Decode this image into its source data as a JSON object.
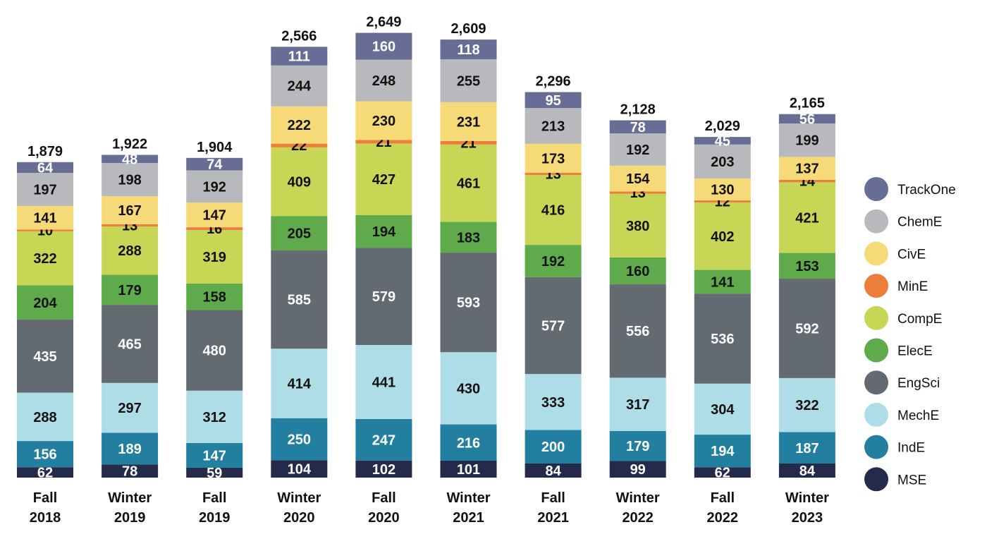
{
  "chart_data": {
    "type": "bar",
    "stacked": true,
    "title": "",
    "xlabel": "",
    "ylabel": "",
    "categories": [
      [
        "Fall",
        "2018"
      ],
      [
        "Winter",
        "2019"
      ],
      [
        "Fall",
        "2019"
      ],
      [
        "Winter",
        "2020"
      ],
      [
        "Fall",
        "2020"
      ],
      [
        "Winter",
        "2021"
      ],
      [
        "Fall",
        "2021"
      ],
      [
        "Winter",
        "2022"
      ],
      [
        "Fall",
        "2022"
      ],
      [
        "Winter",
        "2023"
      ]
    ],
    "totals": [
      "1,879",
      "1,922",
      "1,904",
      "2,566",
      "2,649",
      "2,609",
      "2,296",
      "2,128",
      "2,029",
      "2,165"
    ],
    "series": [
      {
        "name": "MSE",
        "color": "#232a4a",
        "text_color": "#ffffff",
        "values": [
          62,
          78,
          59,
          104,
          102,
          101,
          84,
          99,
          62,
          84
        ]
      },
      {
        "name": "IndE",
        "color": "#227f9f",
        "text_color": "#ffffff",
        "values": [
          156,
          189,
          147,
          250,
          247,
          216,
          200,
          179,
          194,
          187
        ]
      },
      {
        "name": "MechE",
        "color": "#aedde8",
        "text_color": "#111111",
        "values": [
          288,
          297,
          312,
          414,
          441,
          430,
          333,
          317,
          304,
          322
        ]
      },
      {
        "name": "EngSci",
        "color": "#636a72",
        "text_color": "#ffffff",
        "values": [
          435,
          465,
          480,
          585,
          579,
          593,
          577,
          556,
          536,
          592
        ]
      },
      {
        "name": "ElecE",
        "color": "#5fab4c",
        "text_color": "#111111",
        "values": [
          204,
          179,
          158,
          205,
          194,
          183,
          192,
          160,
          141,
          153
        ]
      },
      {
        "name": "CompE",
        "color": "#c8d656",
        "text_color": "#111111",
        "values": [
          322,
          288,
          319,
          409,
          427,
          461,
          416,
          380,
          402,
          421
        ]
      },
      {
        "name": "MinE",
        "color": "#ec7d3a",
        "text_color": "#111111",
        "values": [
          10,
          13,
          16,
          22,
          21,
          21,
          13,
          13,
          12,
          14
        ]
      },
      {
        "name": "CivE",
        "color": "#f7da78",
        "text_color": "#111111",
        "values": [
          141,
          167,
          147,
          222,
          230,
          231,
          173,
          154,
          130,
          137
        ]
      },
      {
        "name": "ChemE",
        "color": "#b7b9bc",
        "text_color": "#111111",
        "values": [
          197,
          198,
          192,
          244,
          248,
          255,
          213,
          192,
          203,
          199
        ]
      },
      {
        "name": "TrackOne",
        "color": "#676d95",
        "text_color": "#ffffff",
        "values": [
          64,
          48,
          74,
          111,
          160,
          118,
          95,
          78,
          45,
          56
        ]
      }
    ],
    "legend": {
      "placement": "right",
      "order": [
        "TrackOne",
        "ChemE",
        "CivE",
        "MinE",
        "CompE",
        "ElecE",
        "EngSci",
        "MechE",
        "IndE",
        "MSE"
      ]
    }
  }
}
